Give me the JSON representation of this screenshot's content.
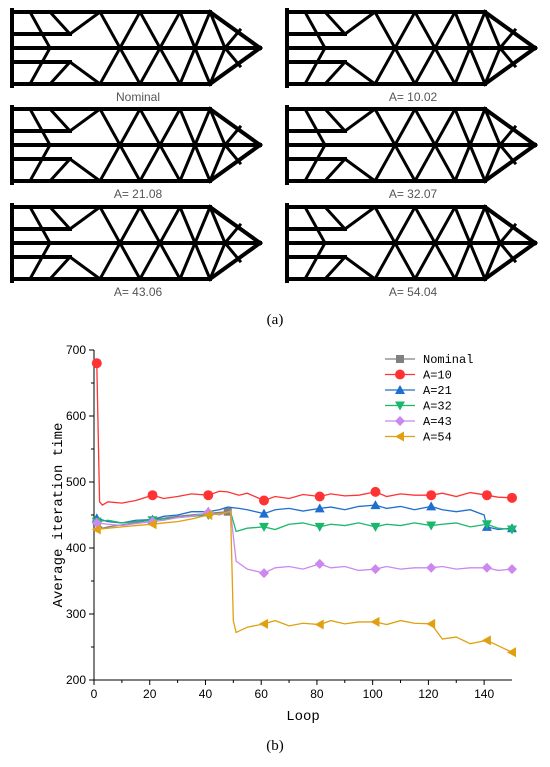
{
  "panel_a": {
    "label": "(a)",
    "captions": [
      "Nominal",
      "A= 10.02",
      "A= 21.08",
      "A= 32.07",
      "A= 43.06",
      "A= 54.04"
    ]
  },
  "panel_b": {
    "label": "(b)"
  },
  "chart_data": {
    "type": "line",
    "xlabel": "Loop",
    "ylabel": "Average iteration time",
    "xlim": [
      0,
      150
    ],
    "ylim": [
      200,
      700
    ],
    "xticks": [
      0,
      20,
      40,
      60,
      80,
      100,
      120,
      140
    ],
    "yticks": [
      200,
      300,
      400,
      500,
      600,
      700
    ],
    "grid": false,
    "legend_position": "top-right",
    "series": [
      {
        "name": "Nominal",
        "color": "#808080",
        "marker": "square",
        "x": [
          1,
          2,
          3,
          5,
          10,
          20,
          30,
          40,
          48
        ],
        "y": [
          440,
          435,
          430,
          432,
          435,
          442,
          448,
          452,
          455
        ]
      },
      {
        "name": "A=10",
        "color": "#ff3333",
        "marker": "circle",
        "x": [
          1,
          2,
          3,
          5,
          10,
          15,
          21,
          25,
          30,
          35,
          41,
          45,
          48,
          52,
          55,
          61,
          65,
          70,
          75,
          81,
          85,
          90,
          95,
          101,
          105,
          110,
          115,
          121,
          125,
          130,
          135,
          141,
          145,
          150
        ],
        "y": [
          680,
          470,
          465,
          470,
          468,
          472,
          480,
          475,
          478,
          482,
          480,
          486,
          485,
          480,
          483,
          472,
          478,
          475,
          481,
          478,
          482,
          479,
          480,
          485,
          478,
          482,
          480,
          480,
          483,
          478,
          484,
          480,
          477,
          476
        ]
      },
      {
        "name": "A=21",
        "color": "#1f6fd0",
        "marker": "triangle-up",
        "x": [
          1,
          5,
          10,
          15,
          21,
          25,
          30,
          35,
          41,
          45,
          48,
          52,
          55,
          61,
          65,
          70,
          75,
          81,
          85,
          90,
          95,
          101,
          105,
          110,
          115,
          121,
          125,
          130,
          135,
          140,
          141,
          145,
          150
        ],
        "y": [
          445,
          440,
          438,
          442,
          443,
          448,
          450,
          455,
          455,
          458,
          462,
          460,
          458,
          452,
          458,
          460,
          456,
          460,
          462,
          458,
          463,
          465,
          460,
          463,
          458,
          463,
          458,
          455,
          458,
          450,
          432,
          428,
          430
        ]
      },
      {
        "name": "A=32",
        "color": "#19b86a",
        "marker": "triangle-down",
        "x": [
          1,
          5,
          10,
          15,
          21,
          25,
          30,
          35,
          41,
          45,
          49,
          51,
          55,
          61,
          65,
          70,
          75,
          81,
          85,
          90,
          95,
          101,
          105,
          110,
          115,
          121,
          125,
          130,
          135,
          141,
          145,
          150
        ],
        "y": [
          440,
          442,
          438,
          440,
          442,
          444,
          446,
          448,
          450,
          452,
          455,
          425,
          430,
          432,
          428,
          436,
          438,
          432,
          436,
          434,
          438,
          432,
          436,
          434,
          438,
          434,
          436,
          438,
          432,
          436,
          430,
          428
        ]
      },
      {
        "name": "A=43",
        "color": "#cc88ee",
        "marker": "diamond",
        "x": [
          1,
          5,
          10,
          15,
          21,
          25,
          30,
          35,
          41,
          45,
          49,
          51,
          55,
          61,
          65,
          70,
          75,
          81,
          85,
          90,
          95,
          101,
          105,
          110,
          115,
          121,
          125,
          130,
          135,
          141,
          145,
          150
        ],
        "y": [
          438,
          436,
          434,
          437,
          440,
          442,
          446,
          448,
          454,
          450,
          456,
          380,
          368,
          362,
          370,
          372,
          368,
          376,
          370,
          372,
          366,
          368,
          372,
          368,
          370,
          370,
          372,
          368,
          370,
          370,
          366,
          368
        ]
      },
      {
        "name": "A=54",
        "color": "#e0a010",
        "marker": "triangle-left",
        "x": [
          1,
          5,
          10,
          15,
          21,
          25,
          30,
          35,
          41,
          45,
          49,
          50,
          51,
          55,
          61,
          65,
          70,
          75,
          81,
          85,
          90,
          95,
          101,
          105,
          110,
          115,
          121,
          125,
          130,
          135,
          141,
          145,
          150
        ],
        "y": [
          428,
          430,
          432,
          434,
          436,
          438,
          440,
          444,
          450,
          452,
          455,
          290,
          272,
          280,
          285,
          290,
          282,
          286,
          284,
          290,
          285,
          288,
          288,
          284,
          290,
          286,
          285,
          262,
          265,
          255,
          260,
          252,
          242
        ]
      }
    ]
  }
}
